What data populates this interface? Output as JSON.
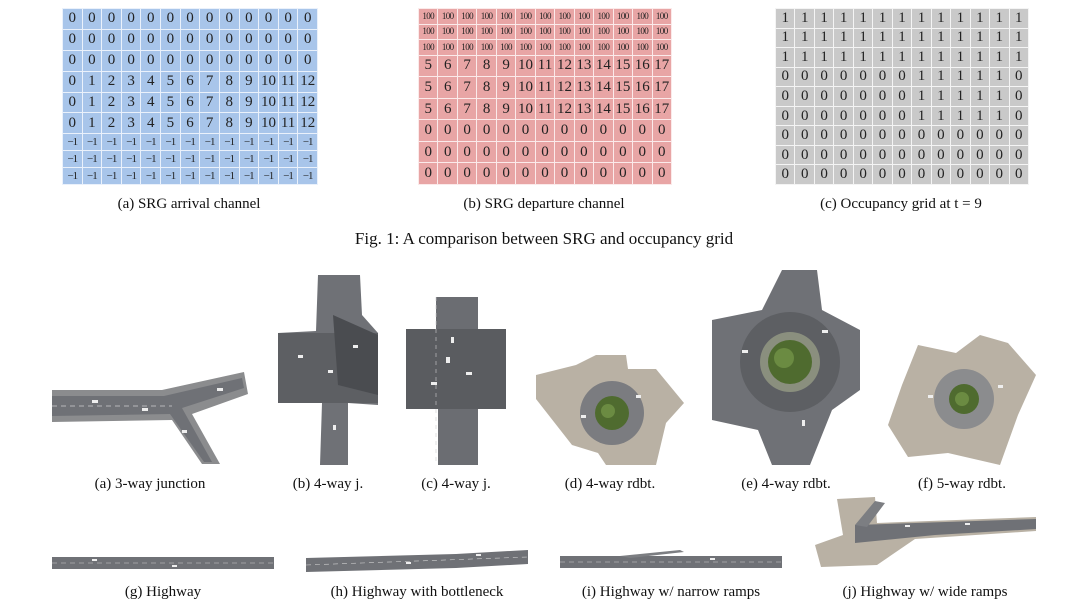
{
  "figure1": {
    "caption": "Fig. 1: A comparison between SRG and occupancy grid",
    "panels": [
      {
        "id": "a",
        "caption": "(a) SRG arrival channel",
        "color": "#a8c5ea",
        "rows": [
          [
            "0",
            "0",
            "0",
            "0",
            "0",
            "0",
            "0",
            "0",
            "0",
            "0",
            "0",
            "0",
            "0"
          ],
          [
            "0",
            "0",
            "0",
            "0",
            "0",
            "0",
            "0",
            "0",
            "0",
            "0",
            "0",
            "0",
            "0"
          ],
          [
            "0",
            "0",
            "0",
            "0",
            "0",
            "0",
            "0",
            "0",
            "0",
            "0",
            "0",
            "0",
            "0"
          ],
          [
            "0",
            "1",
            "2",
            "3",
            "4",
            "5",
            "6",
            "7",
            "8",
            "9",
            "10",
            "11",
            "12"
          ],
          [
            "0",
            "1",
            "2",
            "3",
            "4",
            "5",
            "6",
            "7",
            "8",
            "9",
            "10",
            "11",
            "12"
          ],
          [
            "0",
            "1",
            "2",
            "3",
            "4",
            "5",
            "6",
            "7",
            "8",
            "9",
            "10",
            "11",
            "12"
          ],
          [
            "−1",
            "−1",
            "−1",
            "−1",
            "−1",
            "−1",
            "−1",
            "−1",
            "−1",
            "−1",
            "−1",
            "−1",
            "−1"
          ],
          [
            "−1",
            "−1",
            "−1",
            "−1",
            "−1",
            "−1",
            "−1",
            "−1",
            "−1",
            "−1",
            "−1",
            "−1",
            "−1"
          ],
          [
            "−1",
            "−1",
            "−1",
            "−1",
            "−1",
            "−1",
            "−1",
            "−1",
            "−1",
            "−1",
            "−1",
            "−1",
            "−1"
          ]
        ]
      },
      {
        "id": "b",
        "caption": "(b) SRG departure channel",
        "color": "#e8a5a5",
        "rows": [
          [
            "100",
            "100",
            "100",
            "100",
            "100",
            "100",
            "100",
            "100",
            "100",
            "100",
            "100",
            "100",
            "100"
          ],
          [
            "100",
            "100",
            "100",
            "100",
            "100",
            "100",
            "100",
            "100",
            "100",
            "100",
            "100",
            "100",
            "100"
          ],
          [
            "100",
            "100",
            "100",
            "100",
            "100",
            "100",
            "100",
            "100",
            "100",
            "100",
            "100",
            "100",
            "100"
          ],
          [
            "5",
            "6",
            "7",
            "8",
            "9",
            "10",
            "11",
            "12",
            "13",
            "14",
            "15",
            "16",
            "17"
          ],
          [
            "5",
            "6",
            "7",
            "8",
            "9",
            "10",
            "11",
            "12",
            "13",
            "14",
            "15",
            "16",
            "17"
          ],
          [
            "5",
            "6",
            "7",
            "8",
            "9",
            "10",
            "11",
            "12",
            "13",
            "14",
            "15",
            "16",
            "17"
          ],
          [
            "0",
            "0",
            "0",
            "0",
            "0",
            "0",
            "0",
            "0",
            "0",
            "0",
            "0",
            "0",
            "0"
          ],
          [
            "0",
            "0",
            "0",
            "0",
            "0",
            "0",
            "0",
            "0",
            "0",
            "0",
            "0",
            "0",
            "0"
          ],
          [
            "0",
            "0",
            "0",
            "0",
            "0",
            "0",
            "0",
            "0",
            "0",
            "0",
            "0",
            "0",
            "0"
          ]
        ]
      },
      {
        "id": "c",
        "caption": "(c) Occupancy grid at t = 9",
        "color": "#c9c9c9",
        "rows": [
          [
            "1",
            "1",
            "1",
            "1",
            "1",
            "1",
            "1",
            "1",
            "1",
            "1",
            "1",
            "1",
            "1"
          ],
          [
            "1",
            "1",
            "1",
            "1",
            "1",
            "1",
            "1",
            "1",
            "1",
            "1",
            "1",
            "1",
            "1"
          ],
          [
            "1",
            "1",
            "1",
            "1",
            "1",
            "1",
            "1",
            "1",
            "1",
            "1",
            "1",
            "1",
            "1"
          ],
          [
            "0",
            "0",
            "0",
            "0",
            "0",
            "0",
            "0",
            "1",
            "1",
            "1",
            "1",
            "1",
            "0"
          ],
          [
            "0",
            "0",
            "0",
            "0",
            "0",
            "0",
            "0",
            "1",
            "1",
            "1",
            "1",
            "1",
            "0"
          ],
          [
            "0",
            "0",
            "0",
            "0",
            "0",
            "0",
            "0",
            "1",
            "1",
            "1",
            "1",
            "1",
            "0"
          ],
          [
            "0",
            "0",
            "0",
            "0",
            "0",
            "0",
            "0",
            "0",
            "0",
            "0",
            "0",
            "0",
            "0"
          ],
          [
            "0",
            "0",
            "0",
            "0",
            "0",
            "0",
            "0",
            "0",
            "0",
            "0",
            "0",
            "0",
            "0"
          ],
          [
            "0",
            "0",
            "0",
            "0",
            "0",
            "0",
            "0",
            "0",
            "0",
            "0",
            "0",
            "0",
            "0"
          ]
        ]
      }
    ]
  },
  "figure2": {
    "captions": {
      "a": "(a) 3-way junction",
      "b": "(b) 4-way j.",
      "c": "(c) 4-way j.",
      "d": "(d) 4-way rdbt.",
      "e": "(e) 4-way rdbt.",
      "f": "(f) 5-way rdbt.",
      "g": "(g) Highway",
      "h": "(h) Highway with bottleneck",
      "i": "(i) Highway w/ narrow ramps",
      "j": "(j) Highway w/ wide ramps"
    },
    "colors": {
      "road": "#6f7176",
      "road_light": "#8b8c8e",
      "pavement": "#b9b1a4",
      "island": "#4f6b2f",
      "vehicle": "#eeeeee"
    }
  }
}
